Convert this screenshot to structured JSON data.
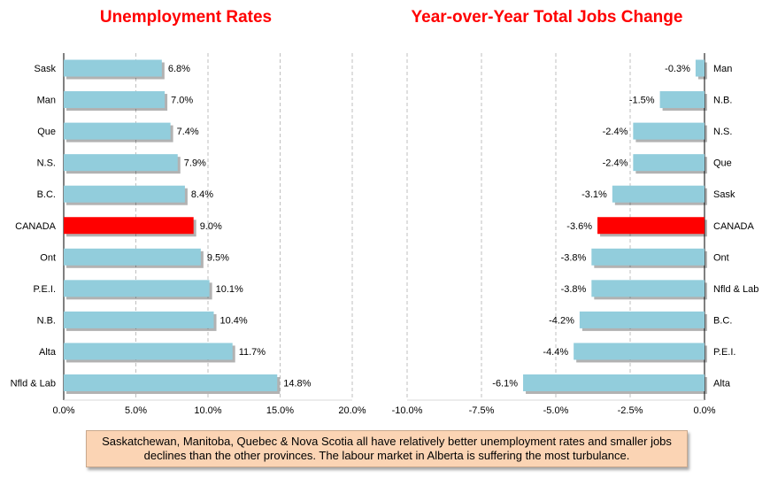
{
  "chart_data": [
    {
      "type": "bar",
      "orientation": "horizontal",
      "title": "Unemployment Rates",
      "categories": [
        "Sask",
        "Man",
        "Que",
        "N.S.",
        "B.C.",
        "CANADA",
        "Ont",
        "P.E.I.",
        "N.B.",
        "Alta",
        "Nfld & Lab"
      ],
      "values": [
        6.8,
        7.0,
        7.4,
        7.9,
        8.4,
        9.0,
        9.5,
        10.1,
        10.4,
        11.7,
        14.8
      ],
      "value_labels": [
        "6.8%",
        "7.0%",
        "7.4%",
        "7.9%",
        "8.4%",
        "9.0%",
        "9.5%",
        "10.1%",
        "10.4%",
        "11.7%",
        "14.8%"
      ],
      "highlight": "CANADA",
      "xlim": [
        0,
        20
      ],
      "xticks": [
        0,
        5,
        10,
        15,
        20
      ],
      "xtick_labels": [
        "0.0%",
        "5.0%",
        "10.0%",
        "15.0%",
        "20.0%"
      ],
      "grid": "vertical dashed",
      "bar_color": "#92cddc",
      "highlight_color": "#ff0000"
    },
    {
      "type": "bar",
      "orientation": "horizontal",
      "title": "Year-over-Year Total Jobs Change",
      "categories": [
        "Man",
        "N.B.",
        "N.S.",
        "Que",
        "Sask",
        "CANADA",
        "Ont",
        "Nfld & Lab",
        "B.C.",
        "P.E.I.",
        "Alta"
      ],
      "values": [
        -0.3,
        -1.5,
        -2.4,
        -2.4,
        -3.1,
        -3.6,
        -3.8,
        -3.8,
        -4.2,
        -4.4,
        -6.1
      ],
      "value_labels": [
        "-0.3%",
        "-1.5%",
        "-2.4%",
        "-2.4%",
        "-3.1%",
        "-3.6%",
        "-3.8%",
        "-3.8%",
        "-4.2%",
        "-4.4%",
        "-6.1%"
      ],
      "highlight": "CANADA",
      "xlim": [
        -10,
        0
      ],
      "xticks": [
        -10,
        -7.5,
        -5,
        -2.5,
        0
      ],
      "xtick_labels": [
        "-10.0%",
        "-7.5%",
        "-5.0%",
        "-2.5%",
        "0.0%"
      ],
      "grid": "vertical dashed",
      "bar_color": "#92cddc",
      "highlight_color": "#ff0000"
    }
  ],
  "note": "Saskatchewan, Manitoba, Quebec & Nova Scotia all have relatively better unemployment rates and smaller jobs declines than the other provinces. The labour market in Alberta is suffering the most turbulance."
}
